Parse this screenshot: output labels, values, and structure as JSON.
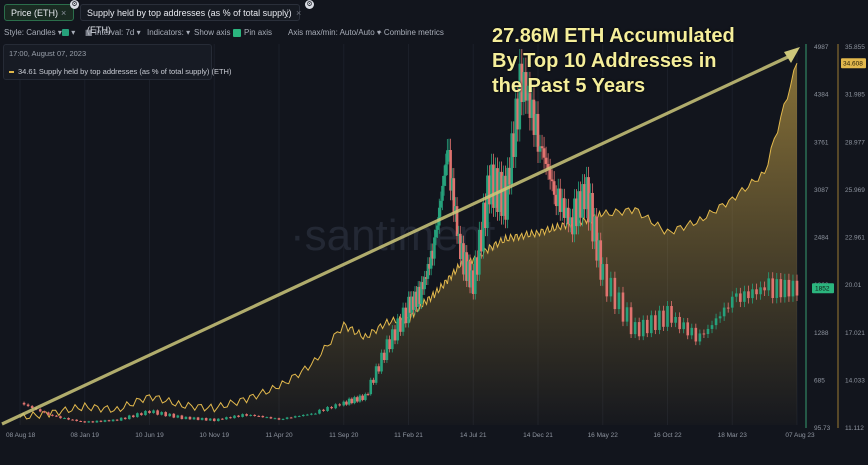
{
  "tabs": {
    "price": "Price (ETH)",
    "supply": "Supply held by top addresses (as % of total supply) (ETH)"
  },
  "toolbar": {
    "style": "Style: Candles",
    "interval": "Interval: 7d",
    "indicators": "Indicators:",
    "show_axis": "Show axis",
    "pin_axis": "Pin axis",
    "axis_maxmin": "Axis max/min: Auto/Auto",
    "combine": "Combine metrics"
  },
  "legend": {
    "date": "17:00, August 07, 2023",
    "value": "34.61",
    "label": "Supply held by top addresses (as % of total supply) (ETH)"
  },
  "annotation": {
    "line1": "27.86M ETH Accumulated",
    "line2": "By Top 10 Addresses in",
    "line3": "the Past 5 Years"
  },
  "watermark": "·santiment·",
  "colors": {
    "up": "#26a17b",
    "down": "#e0736f",
    "supply_line": "#e3b94d",
    "trend_line": "#cdc77a",
    "background": "#12151d"
  },
  "chart_data": {
    "type": "line",
    "x_tick_labels": [
      "08 Aug 18",
      "08 Jan 19",
      "10 Jun 19",
      "10 Nov 19",
      "11 Apr 20",
      "11 Sep 20",
      "11 Feb 21",
      "14 Jul 21",
      "14 Dec 21",
      "16 May 22",
      "16 Oct 22",
      "18 Mar 23",
      "07 Aug 23"
    ],
    "left_axis": {
      "labels": [
        "4987",
        "4384",
        "3761",
        "3087",
        "2484",
        "1862",
        "1288",
        "685",
        "95.73"
      ],
      "current_value": "1852",
      "ylim": [
        95.73,
        4987
      ]
    },
    "right_axis": {
      "labels": [
        "35.855",
        "31.985",
        "28.977",
        "25.969",
        "22.961",
        "20.01",
        "17.021",
        "14.033",
        "11.112"
      ],
      "current_value": "34.608",
      "ylim": [
        11.112,
        35.855
      ]
    },
    "series": [
      {
        "name": "Price (ETH)",
        "axis": "left",
        "style": "candles",
        "x": [
          "08 Aug 18",
          "08 Oct 18",
          "08 Jan 19",
          "08 Apr 19",
          "10 Jun 19",
          "10 Aug 19",
          "10 Nov 19",
          "10 Feb 20",
          "11 Apr 20",
          "11 Jul 20",
          "11 Sep 20",
          "11 Nov 20",
          "11 Jan 21",
          "11 Feb 21",
          "11 Mar 21",
          "11 Apr 21",
          "11 May 21",
          "11 Jun 21",
          "14 Jul 21",
          "14 Aug 21",
          "14 Sep 21",
          "14 Nov 21",
          "14 Dec 21",
          "14 Jan 22",
          "14 Mar 22",
          "14 Apr 22",
          "16 May 22",
          "16 Jul 22",
          "16 Oct 22",
          "16 Dec 22",
          "18 Mar 23",
          "18 May 23",
          "07 Aug 23"
        ],
        "values": [
          380,
          210,
          130,
          160,
          270,
          190,
          160,
          230,
          170,
          240,
          380,
          460,
          1100,
          1600,
          1800,
          2400,
          3600,
          2300,
          1900,
          3200,
          3000,
          4600,
          3800,
          3100,
          2700,
          3100,
          2000,
          1300,
          1500,
          1200,
          1700,
          1850,
          1850
        ]
      },
      {
        "name": "Supply held by top addresses (as % of total supply) (ETH)",
        "axis": "right",
        "style": "line",
        "x": [
          "08 Aug 18",
          "08 Oct 18",
          "08 Jan 19",
          "08 Apr 19",
          "10 Jun 19",
          "10 Aug 19",
          "10 Nov 19",
          "10 Feb 20",
          "11 Apr 20",
          "11 Jul 20",
          "11 Sep 20",
          "11 Nov 20",
          "11 Jan 21",
          "11 Feb 21",
          "11 Mar 21",
          "11 Apr 21",
          "11 May 21",
          "11 Jun 21",
          "14 Jul 21",
          "14 Aug 21",
          "14 Sep 21",
          "14 Nov 21",
          "14 Dec 21",
          "14 Jan 22",
          "14 Mar 22",
          "14 Apr 22",
          "16 May 22",
          "16 Jul 22",
          "16 Oct 22",
          "16 Dec 22",
          "18 Mar 23",
          "18 May 23",
          "07 Aug 23"
        ],
        "values": [
          11.6,
          11.9,
          12.3,
          12.1,
          13.0,
          12.4,
          12.2,
          12.8,
          13.6,
          15.0,
          17.6,
          16.8,
          17.8,
          18.0,
          18.9,
          19.6,
          20.5,
          21.5,
          21.8,
          22.6,
          23.2,
          23.4,
          23.6,
          23.9,
          24.2,
          24.4,
          24.8,
          25.1,
          23.6,
          24.4,
          25.8,
          27.5,
          34.61
        ]
      }
    ],
    "annotations": [
      "27.86M ETH Accumulated",
      "By Top 10 Addresses in",
      "the Past 5 Years"
    ]
  }
}
